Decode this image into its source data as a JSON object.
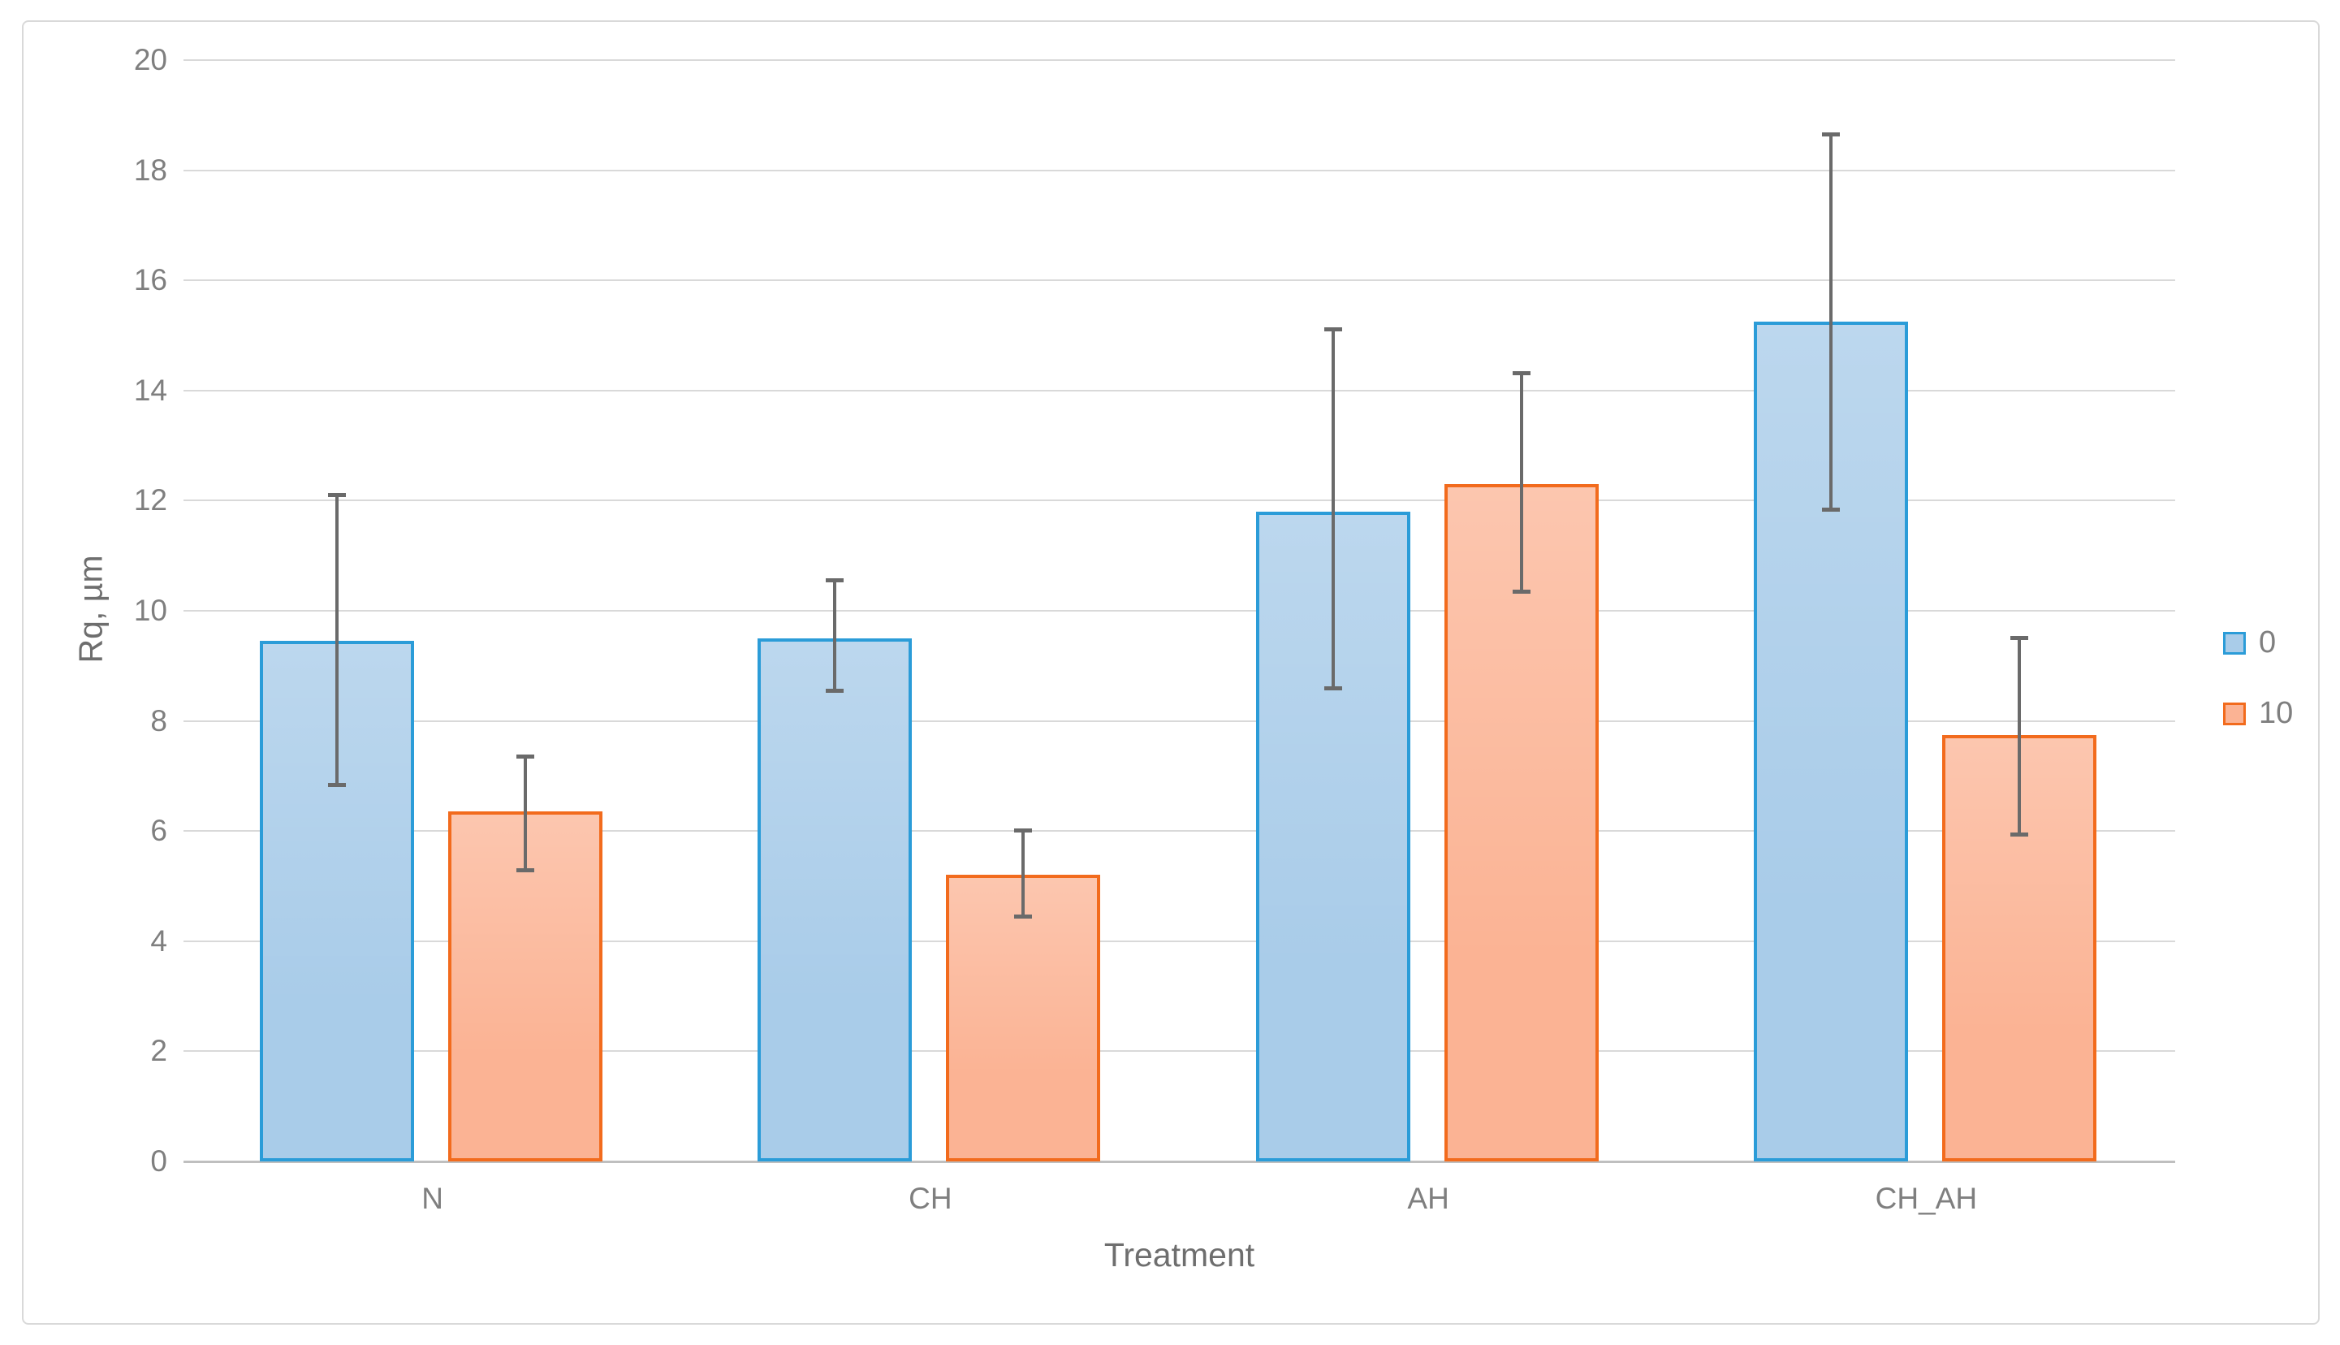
{
  "chart_data": {
    "type": "bar",
    "title": "",
    "xlabel": "Treatment",
    "ylabel": "Rq, µm",
    "categories": [
      "N",
      "CH",
      "AH",
      "CH_AH"
    ],
    "series": [
      {
        "name": "0",
        "values": [
          9.45,
          9.5,
          11.8,
          15.25
        ],
        "error_low": [
          6.85,
          8.55,
          8.6,
          11.85
        ],
        "error_high": [
          12.1,
          10.55,
          15.1,
          18.65
        ]
      },
      {
        "name": "10",
        "values": [
          6.35,
          5.2,
          12.3,
          7.75
        ],
        "error_low": [
          5.3,
          4.45,
          10.35,
          5.95
        ],
        "error_high": [
          7.35,
          6.0,
          14.3,
          9.5
        ]
      }
    ],
    "ylim": [
      0,
      20
    ],
    "ytick_step": 2,
    "yticks": [
      "0",
      "2",
      "4",
      "6",
      "8",
      "10",
      "12",
      "14",
      "16",
      "18",
      "20"
    ],
    "grid": true,
    "legend_position": "right",
    "legend_labels": [
      "0",
      "10"
    ]
  },
  "colors": {
    "series0_fill": "#a9cce9",
    "series0_border": "#2b9cd8",
    "series1_fill": "#fbb394",
    "series1_border": "#f26b1d",
    "gridline": "#d9d9d9",
    "axis_line": "#bfbfbf",
    "error_bar": "#6a6a6a",
    "tick_text": "#7f7f7f",
    "title_text": "#6e6e6e",
    "frame_border": "#d9d9d9"
  }
}
